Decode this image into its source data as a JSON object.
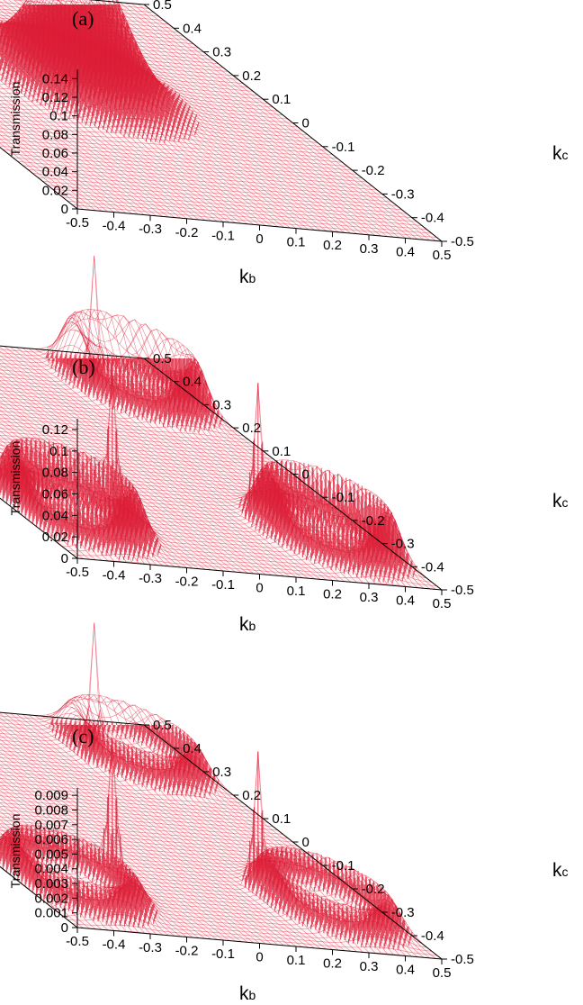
{
  "colors": {
    "surface": "#dc1e37",
    "axis": "#000000",
    "background": "#ffffff"
  },
  "chart_data": [
    {
      "type": "surface3d",
      "panel_label": "(a)",
      "zlabel": "Transmission",
      "xlabel": {
        "main": "k",
        "sub": "b"
      },
      "ylabel": {
        "main": "k",
        "sub": "c"
      },
      "xlim": [
        -0.5,
        0.5
      ],
      "ylim": [
        -0.5,
        0.5
      ],
      "zlim": [
        0,
        0.15
      ],
      "x_ticks": [
        "-0.5",
        "-0.4",
        "-0.3",
        "-0.2",
        "-0.1",
        "0",
        "0.1",
        "0.2",
        "0.3",
        "0.4",
        "0.5"
      ],
      "y_ticks": [
        "-0.5",
        "-0.4",
        "-0.3",
        "-0.2",
        "-0.1",
        "0",
        "0.1",
        "0.2",
        "0.3",
        "0.4",
        "0.5"
      ],
      "z_ticks": [
        "0",
        "0.02",
        "0.04",
        "0.06",
        "0.08",
        "0.1",
        "0.12",
        "0.14"
      ],
      "features": [
        {
          "kind": "gaussian_peak",
          "kb": 0.0,
          "kc": 0.1,
          "height": 0.15,
          "width": 0.09
        }
      ]
    },
    {
      "type": "surface3d",
      "panel_label": "(b)",
      "zlabel": "Transmission",
      "xlabel": {
        "main": "k",
        "sub": "b"
      },
      "ylabel": {
        "main": "k",
        "sub": "c"
      },
      "xlim": [
        -0.5,
        0.5
      ],
      "ylim": [
        -0.5,
        0.5
      ],
      "zlim": [
        0,
        0.13
      ],
      "x_ticks": [
        "-0.5",
        "-0.4",
        "-0.3",
        "-0.2",
        "-0.1",
        "0",
        "0.1",
        "0.2",
        "0.3",
        "0.4",
        "0.5"
      ],
      "y_ticks": [
        "-0.5",
        "-0.4",
        "-0.3",
        "-0.2",
        "-0.1",
        "0",
        "0.1",
        "0.2",
        "0.3",
        "0.4",
        "0.5"
      ],
      "z_ticks": [
        "0",
        "0.02",
        "0.04",
        "0.06",
        "0.08",
        "0.1",
        "0.12"
      ],
      "features": [
        {
          "kind": "ring",
          "kb": -0.35,
          "kc": -0.3,
          "height": 0.045
        },
        {
          "kind": "ring",
          "kb": 0.35,
          "kc": -0.3,
          "height": 0.045
        },
        {
          "kind": "ring",
          "kb": -0.35,
          "kc": 0.35,
          "height": 0.045
        },
        {
          "kind": "ring",
          "kb": 0.35,
          "kc": 0.35,
          "height": 0.045
        },
        {
          "kind": "spike",
          "kb": -0.2,
          "kc": -0.25,
          "height": 0.13
        },
        {
          "kind": "spike",
          "kb": 0.2,
          "kc": -0.25,
          "height": 0.13
        },
        {
          "kind": "spike",
          "kb": -0.2,
          "kc": 0.3,
          "height": 0.13
        },
        {
          "kind": "spike",
          "kb": 0.2,
          "kc": 0.3,
          "height": 0.13
        }
      ]
    },
    {
      "type": "surface3d",
      "panel_label": "(c)",
      "zlabel": "Transmission",
      "xlabel": {
        "main": "k",
        "sub": "b"
      },
      "ylabel": {
        "main": "k",
        "sub": "c"
      },
      "xlim": [
        -0.5,
        0.5
      ],
      "ylim": [
        -0.5,
        0.5
      ],
      "zlim": [
        0,
        0.0095
      ],
      "x_ticks": [
        "-0.5",
        "-0.4",
        "-0.3",
        "-0.2",
        "-0.1",
        "0",
        "0.1",
        "0.2",
        "0.3",
        "0.4",
        "0.5"
      ],
      "y_ticks": [
        "-0.5",
        "-0.4",
        "-0.3",
        "-0.2",
        "-0.1",
        "0",
        "0.1",
        "0.2",
        "0.3",
        "0.4",
        "0.5"
      ],
      "z_ticks": [
        "0",
        "0.001",
        "0.002",
        "0.003",
        "0.004",
        "0.005",
        "0.006",
        "0.007",
        "0.008",
        "0.009"
      ],
      "features": [
        {
          "kind": "ring",
          "kb": -0.35,
          "kc": -0.3,
          "height": 0.002
        },
        {
          "kind": "ring",
          "kb": 0.35,
          "kc": -0.3,
          "height": 0.002
        },
        {
          "kind": "ring",
          "kb": -0.35,
          "kc": 0.35,
          "height": 0.002
        },
        {
          "kind": "ring",
          "kb": 0.35,
          "kc": 0.35,
          "height": 0.002
        },
        {
          "kind": "spike",
          "kb": -0.2,
          "kc": -0.25,
          "height": 0.0095
        },
        {
          "kind": "spike",
          "kb": 0.2,
          "kc": -0.25,
          "height": 0.0095
        },
        {
          "kind": "spike",
          "kb": -0.2,
          "kc": 0.3,
          "height": 0.0095
        },
        {
          "kind": "spike",
          "kb": 0.2,
          "kc": 0.3,
          "height": 0.0095
        }
      ]
    }
  ]
}
